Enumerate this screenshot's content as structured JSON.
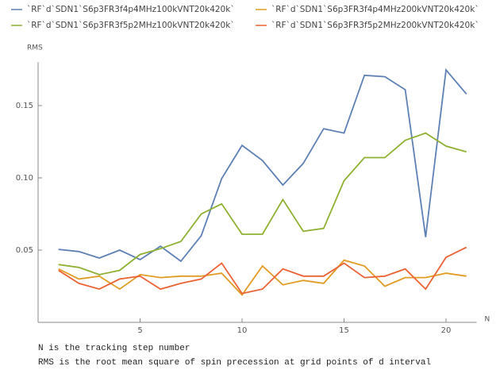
{
  "chart_data": {
    "type": "line",
    "x_label": "N",
    "y_label": "RMS",
    "x": [
      1,
      2,
      3,
      4,
      5,
      6,
      7,
      8,
      9,
      10,
      11,
      12,
      13,
      14,
      15,
      16,
      17,
      18,
      19,
      20,
      21
    ],
    "series": [
      {
        "name": "`RF`d`SDN1`S6p3FR3f4p4MHz100kVNT20k420k`",
        "color": "#5e81b5",
        "values": [
          0.0505,
          0.049,
          0.0445,
          0.05,
          0.0434,
          0.0527,
          0.0423,
          0.06,
          0.0995,
          0.1225,
          0.112,
          0.095,
          0.11,
          0.134,
          0.131,
          0.171,
          0.17,
          0.161,
          0.059,
          0.1747,
          0.158
        ]
      },
      {
        "name": "`RF`d`SDN1`S6p3FR3f4p4MHz200kVNT20k420k`",
        "color": "#e19c24",
        "values": [
          0.037,
          0.03,
          0.032,
          0.023,
          0.033,
          0.031,
          0.032,
          0.032,
          0.034,
          0.019,
          0.039,
          0.026,
          0.029,
          0.027,
          0.043,
          0.039,
          0.025,
          0.031,
          0.031,
          0.034,
          0.032
        ]
      },
      {
        "name": "`RF`d`SDN1`S6p3FR3f5p2MHz100kVNT20k420k`",
        "color": "#8fb032",
        "values": [
          0.04,
          0.038,
          0.033,
          0.036,
          0.047,
          0.051,
          0.056,
          0.075,
          0.082,
          0.061,
          0.061,
          0.085,
          0.063,
          0.065,
          0.098,
          0.114,
          0.114,
          0.126,
          0.131,
          0.122,
          0.118
        ]
      },
      {
        "name": "`RF`d`SDN1`S6p3FR3f5p2MHz200kVNT20k420k`",
        "color": "#eb6235",
        "values": [
          0.036,
          0.027,
          0.023,
          0.03,
          0.032,
          0.023,
          0.027,
          0.03,
          0.041,
          0.02,
          0.023,
          0.037,
          0.032,
          0.032,
          0.041,
          0.031,
          0.032,
          0.037,
          0.023,
          0.045,
          0.052
        ]
      }
    ],
    "xlim": [
      0,
      21.5
    ],
    "xticks": [
      5,
      10,
      15,
      20
    ],
    "ylim": [
      0,
      0.18
    ],
    "yticks": [
      0.05,
      {
        "value": 0.1,
        "label": "0.10"
      },
      0.15
    ],
    "notes": [
      "N is the tracking step number",
      "RMS is the root mean square of spin precession at grid points of d interval"
    ]
  }
}
